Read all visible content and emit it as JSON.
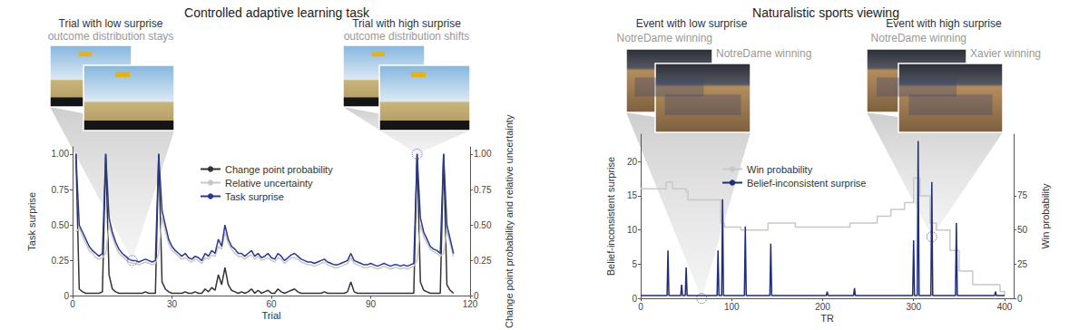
{
  "chart_data": [
    {
      "type": "line",
      "title": "Controlled adaptive learning task",
      "x_label": "Trial",
      "y_label": "Task surprise",
      "y2_label": "Change point probability and relative uncertainty",
      "xlim": [
        0,
        120
      ],
      "xticks": [
        0,
        30,
        60,
        90,
        120
      ],
      "ylim": [
        0,
        1.05
      ],
      "yticks": [
        0,
        0.25,
        {
          "value": 0.5,
          "label": "0.50"
        },
        0.75,
        {
          "value": 1,
          "label": "1.00"
        }
      ],
      "y2lim": [
        0,
        1.05
      ],
      "y2ticks": [
        0,
        0.25,
        {
          "value": 0.5,
          "label": "0.50"
        },
        0.75,
        {
          "value": 1,
          "label": "1.00"
        }
      ],
      "grid": false,
      "legend": "top",
      "x": [
        1,
        2,
        3,
        4,
        5,
        6,
        7,
        8,
        9,
        10,
        11,
        12,
        13,
        14,
        15,
        16,
        17,
        18,
        19,
        20,
        21,
        22,
        23,
        24,
        25,
        26,
        27,
        28,
        29,
        30,
        31,
        32,
        33,
        34,
        35,
        36,
        37,
        38,
        39,
        40,
        41,
        42,
        43,
        44,
        45,
        46,
        47,
        48,
        49,
        50,
        51,
        52,
        53,
        54,
        55,
        56,
        57,
        58,
        59,
        60,
        61,
        62,
        63,
        64,
        65,
        66,
        67,
        68,
        69,
        70,
        71,
        72,
        73,
        74,
        75,
        76,
        77,
        78,
        79,
        80,
        81,
        82,
        83,
        84,
        85,
        86,
        87,
        88,
        89,
        90,
        91,
        92,
        93,
        94,
        95,
        96,
        97,
        98,
        99,
        100,
        101,
        102,
        103,
        104,
        105,
        106,
        107,
        108,
        109,
        110,
        111,
        112,
        113,
        114,
        115
      ],
      "series": [
        {
          "name": "Change point probability",
          "color": "#333333",
          "axis": "y2",
          "type": "line",
          "marker": "none",
          "values": [
            1.0,
            0.05,
            0.03,
            0.02,
            0.02,
            0.02,
            0.02,
            0.02,
            0.03,
            1.0,
            0.15,
            0.05,
            0.03,
            0.02,
            0.02,
            0.02,
            0.02,
            0.02,
            0.02,
            0.02,
            0.02,
            0.03,
            0.02,
            0.02,
            0.02,
            1.0,
            0.1,
            0.05,
            0.03,
            0.02,
            0.02,
            0.02,
            0.02,
            0.03,
            0.02,
            0.02,
            0.03,
            0.02,
            0.02,
            0.05,
            0.03,
            0.06,
            0.04,
            0.15,
            0.08,
            0.2,
            0.08,
            0.04,
            0.03,
            0.02,
            0.03,
            0.02,
            0.03,
            0.05,
            0.02,
            0.04,
            0.02,
            0.03,
            0.04,
            0.02,
            0.02,
            0.05,
            0.03,
            0.02,
            0.03,
            0.04,
            0.05,
            0.03,
            0.02,
            0.02,
            0.02,
            0.02,
            0.02,
            0.02,
            0.02,
            0.03,
            0.02,
            0.02,
            0.02,
            0.02,
            0.02,
            0.02,
            0.03,
            0.1,
            0.03,
            0.02,
            0.02,
            0.02,
            0.02,
            0.02,
            0.02,
            0.02,
            0.02,
            0.02,
            0.02,
            0.02,
            0.02,
            0.02,
            0.02,
            0.02,
            0.02,
            0.02,
            0.02,
            1.0,
            0.1,
            0.04,
            0.03,
            0.02,
            0.02,
            0.02,
            0.02,
            1.0,
            0.08,
            0.04,
            0.02
          ]
        },
        {
          "name": "Relative uncertainty",
          "color": "#c8c8c8",
          "axis": "y2",
          "type": "line",
          "marker": "none",
          "values": [
            0.45,
            0.48,
            0.42,
            0.37,
            0.32,
            0.3,
            0.27,
            0.26,
            0.27,
            0.3,
            0.5,
            0.42,
            0.35,
            0.3,
            0.28,
            0.26,
            0.24,
            0.23,
            0.23,
            0.22,
            0.23,
            0.24,
            0.23,
            0.22,
            0.23,
            0.3,
            0.55,
            0.46,
            0.37,
            0.32,
            0.3,
            0.28,
            0.26,
            0.27,
            0.25,
            0.24,
            0.26,
            0.25,
            0.23,
            0.27,
            0.26,
            0.29,
            0.28,
            0.35,
            0.33,
            0.45,
            0.37,
            0.33,
            0.3,
            0.28,
            0.28,
            0.26,
            0.28,
            0.29,
            0.26,
            0.28,
            0.25,
            0.26,
            0.27,
            0.25,
            0.24,
            0.27,
            0.26,
            0.23,
            0.25,
            0.27,
            0.27,
            0.26,
            0.24,
            0.23,
            0.22,
            0.22,
            0.21,
            0.22,
            0.23,
            0.24,
            0.22,
            0.21,
            0.2,
            0.2,
            0.21,
            0.22,
            0.23,
            0.27,
            0.23,
            0.22,
            0.21,
            0.2,
            0.2,
            0.21,
            0.2,
            0.19,
            0.2,
            0.21,
            0.2,
            0.19,
            0.2,
            0.2,
            0.19,
            0.2,
            0.19,
            0.2,
            0.21,
            0.25,
            0.5,
            0.42,
            0.37,
            0.33,
            0.31,
            0.3,
            0.28,
            0.3,
            0.46,
            0.37,
            0.28
          ]
        },
        {
          "name": "Task surprise",
          "color": "#2a3990",
          "type": "line",
          "marker": "none",
          "values": [
            1.0,
            0.5,
            0.45,
            0.4,
            0.35,
            0.32,
            0.3,
            0.28,
            0.3,
            1.0,
            0.55,
            0.45,
            0.38,
            0.33,
            0.3,
            0.28,
            0.26,
            0.25,
            0.25,
            0.24,
            0.25,
            0.26,
            0.25,
            0.24,
            0.25,
            1.0,
            0.6,
            0.5,
            0.4,
            0.35,
            0.32,
            0.3,
            0.28,
            0.3,
            0.27,
            0.26,
            0.28,
            0.27,
            0.25,
            0.3,
            0.28,
            0.32,
            0.3,
            0.4,
            0.35,
            0.5,
            0.4,
            0.35,
            0.33,
            0.3,
            0.3,
            0.28,
            0.3,
            0.32,
            0.28,
            0.3,
            0.27,
            0.28,
            0.3,
            0.27,
            0.26,
            0.3,
            0.28,
            0.25,
            0.27,
            0.29,
            0.3,
            0.28,
            0.26,
            0.25,
            0.24,
            0.24,
            0.23,
            0.24,
            0.25,
            0.26,
            0.24,
            0.23,
            0.22,
            0.22,
            0.23,
            0.24,
            0.25,
            0.3,
            0.25,
            0.24,
            0.23,
            0.22,
            0.22,
            0.23,
            0.22,
            0.21,
            0.22,
            0.23,
            0.22,
            0.21,
            0.22,
            0.22,
            0.21,
            0.22,
            0.21,
            0.22,
            0.23,
            1.0,
            0.55,
            0.45,
            0.4,
            0.35,
            0.33,
            0.32,
            0.3,
            1.0,
            0.5,
            0.4,
            0.3
          ]
        }
      ],
      "annotations": [
        {
          "x": 18,
          "y": 0.25,
          "text": "Trial with low surprise",
          "subtext": "outcome distribution stays"
        },
        {
          "x": 104,
          "y": 1.0,
          "text": "Trial with high surprise",
          "subtext": "outcome distribution shifts"
        }
      ]
    },
    {
      "type": "line",
      "title": "Naturalistic sports viewing",
      "x_label": "TR",
      "y_label": "Belief-inconsistent surprise",
      "y2_label": "Win probability",
      "xlim": [
        0,
        410
      ],
      "xticks": [
        0,
        100,
        200,
        300,
        400
      ],
      "ylim": [
        0,
        24
      ],
      "yticks": [
        0,
        5,
        10,
        15,
        20
      ],
      "y2lim": [
        0,
        120
      ],
      "y2ticks": [
        0,
        25,
        50,
        75
      ],
      "grid": false,
      "legend": "top",
      "series": [
        {
          "name": "Win probability",
          "color": "#c8c8c8",
          "axis": "y2",
          "type": "step",
          "marker": "none",
          "x": [
            0,
            28,
            35,
            50,
            52,
            88,
            92,
            110,
            140,
            170,
            230,
            260,
            275,
            290,
            300,
            307,
            318,
            325,
            340,
            350,
            365,
            395,
            400
          ],
          "values": [
            80,
            85,
            80,
            78,
            72,
            55,
            52,
            50,
            55,
            52,
            55,
            60,
            65,
            70,
            88,
            75,
            55,
            50,
            35,
            20,
            10,
            5,
            2
          ]
        },
        {
          "name": "Belief-inconsistent surprise",
          "color": "#1f2d7a",
          "type": "line",
          "marker": "none",
          "x": [
            0,
            29,
            30,
            31,
            44,
            45,
            46,
            49,
            50,
            51,
            84,
            85,
            86,
            89,
            90,
            91,
            114,
            115,
            116,
            142,
            143,
            144,
            204,
            205,
            206,
            234,
            235,
            236,
            299,
            300,
            301,
            304,
            305,
            306,
            319,
            320,
            321,
            346,
            347,
            348,
            389,
            390,
            391,
            400
          ],
          "values": [
            0.4,
            0.4,
            7,
            0.4,
            0.4,
            2,
            0.4,
            0.4,
            4.5,
            0.4,
            0.4,
            7,
            0.4,
            0.4,
            14.5,
            0.4,
            0.4,
            10.5,
            0.4,
            0.4,
            8,
            0.4,
            0.4,
            1,
            0.4,
            0.4,
            1.5,
            0.4,
            0.4,
            8.5,
            0.4,
            0.4,
            23,
            0.4,
            0.4,
            17,
            0.4,
            0.4,
            11,
            0.4,
            0.4,
            1,
            0.4,
            0.4
          ]
        }
      ],
      "annotations": [
        {
          "x": 67,
          "y": 0,
          "text": "Event with low surprise",
          "frame_labels": [
            "NotreDame winning",
            "NotreDame winning"
          ]
        },
        {
          "x": 320,
          "y": 9,
          "text": "Event with high surprise",
          "frame_labels": [
            "NotreDame winning",
            "Xavier winning"
          ]
        }
      ]
    }
  ]
}
